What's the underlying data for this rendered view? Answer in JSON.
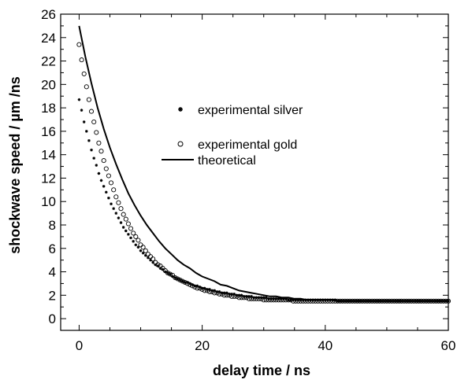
{
  "chart_data": {
    "type": "scatter",
    "xlabel": "delay time / ns",
    "ylabel": "shockwave speed / µm /ns",
    "xlim": [
      -3,
      60
    ],
    "ylim": [
      -1,
      26
    ],
    "x_ticks": [
      0,
      20,
      40,
      60
    ],
    "y_ticks": [
      0,
      2,
      4,
      6,
      8,
      10,
      12,
      14,
      16,
      18,
      20,
      22,
      24,
      26
    ],
    "grid": false,
    "legend_position": "center-right",
    "series": [
      {
        "name": "experimental silver",
        "marker": "star",
        "x": [
          0.0,
          0.4,
          0.8,
          1.2,
          1.6,
          2.0,
          2.4,
          2.8,
          3.2,
          3.6,
          4.0,
          4.4,
          4.8,
          5.2,
          5.6,
          6.0,
          6.4,
          6.8,
          7.2,
          7.6,
          8.0,
          8.4,
          8.8,
          9.2,
          9.6,
          10.0,
          10.4,
          10.8,
          11.2,
          11.6,
          12.0,
          12.4,
          12.8,
          13.2,
          13.6,
          14.0,
          14.4,
          14.8,
          15.2,
          15.6,
          16.0,
          16.4,
          16.8,
          17.2,
          17.6,
          18.0,
          18.4,
          18.8,
          19.2,
          19.6,
          20.0,
          20.4,
          20.8,
          21.2,
          21.6,
          22.0,
          22.4,
          22.8,
          23.2,
          23.6,
          24.0,
          24.4,
          24.8,
          25.2,
          25.6,
          26.0,
          26.4,
          26.8,
          27.2,
          27.6,
          28.0,
          28.4,
          28.8,
          29.2,
          29.6,
          30.0,
          30.4,
          30.8,
          31.2,
          31.6,
          32.0,
          32.4,
          32.8,
          33.2,
          33.6,
          34.0,
          34.4,
          34.8,
          35.2,
          35.6,
          36.0,
          36.4,
          36.8,
          37.2,
          37.6,
          38.0,
          38.4,
          38.8,
          39.2,
          39.6,
          40.0,
          40.4,
          40.8,
          41.2,
          41.6,
          42.0,
          42.4,
          42.8,
          43.2,
          43.6,
          44.0,
          44.4,
          44.8,
          45.2,
          45.6,
          46.0,
          46.4,
          46.8,
          47.2,
          47.6,
          48.0,
          48.4,
          48.8,
          49.2,
          49.6,
          50.0,
          50.4,
          50.8,
          51.2,
          51.6,
          52.0,
          52.4,
          52.8,
          53.2,
          53.6,
          54.0,
          54.4,
          54.8,
          55.2,
          55.6,
          56.0,
          56.4,
          56.8,
          57.2,
          57.6,
          58.0,
          58.4,
          58.8,
          59.2,
          59.6,
          60.0
        ],
        "y": [
          18.7,
          17.8,
          16.8,
          16.0,
          15.2,
          14.4,
          13.7,
          13.1,
          12.4,
          11.8,
          11.3,
          10.8,
          10.3,
          9.8,
          9.4,
          9.0,
          8.6,
          8.2,
          7.8,
          7.5,
          7.2,
          6.9,
          6.6,
          6.3,
          6.1,
          5.8,
          5.6,
          5.4,
          5.2,
          5.0,
          4.8,
          4.6,
          4.5,
          4.3,
          4.2,
          4.0,
          3.9,
          3.8,
          3.6,
          3.5,
          3.4,
          3.3,
          3.2,
          3.1,
          3.1,
          3.0,
          2.9,
          2.8,
          2.8,
          2.7,
          2.6,
          2.6,
          2.5,
          2.5,
          2.4,
          2.4,
          2.3,
          2.3,
          2.2,
          2.2,
          2.2,
          2.1,
          2.1,
          2.1,
          2.0,
          2.0,
          2.0,
          1.9,
          1.9,
          1.9,
          1.9,
          1.8,
          1.8,
          1.8,
          1.8,
          1.8,
          1.8,
          1.7,
          1.7,
          1.7,
          1.7,
          1.7,
          1.7,
          1.7,
          1.7,
          1.6,
          1.6,
          1.6,
          1.6,
          1.6,
          1.6,
          1.6,
          1.6,
          1.6,
          1.6,
          1.6,
          1.6,
          1.6,
          1.6,
          1.6,
          1.6,
          1.6,
          1.6,
          1.6,
          1.6,
          1.5,
          1.5,
          1.5,
          1.5,
          1.5,
          1.5,
          1.5,
          1.5,
          1.5,
          1.5,
          1.5,
          1.5,
          1.5,
          1.5,
          1.5,
          1.5,
          1.5,
          1.5,
          1.5,
          1.5,
          1.5,
          1.5,
          1.5,
          1.5,
          1.5,
          1.5,
          1.5,
          1.5,
          1.5,
          1.5,
          1.5,
          1.5,
          1.5,
          1.5,
          1.5,
          1.5,
          1.5,
          1.5,
          1.5,
          1.5,
          1.5,
          1.5,
          1.5,
          1.5,
          1.5,
          1.5
        ]
      },
      {
        "name": "experimental gold",
        "marker": "open-circle",
        "x": [
          0.0,
          0.4,
          0.8,
          1.2,
          1.6,
          2.0,
          2.4,
          2.8,
          3.2,
          3.6,
          4.0,
          4.4,
          4.8,
          5.2,
          5.6,
          6.0,
          6.4,
          6.8,
          7.2,
          7.6,
          8.0,
          8.4,
          8.8,
          9.2,
          9.6,
          10.0,
          10.4,
          10.8,
          11.2,
          11.6,
          12.0,
          12.4,
          12.8,
          13.2,
          13.6,
          14.0,
          14.4,
          14.8,
          15.2,
          15.6,
          16.0,
          16.4,
          16.8,
          17.2,
          17.6,
          18.0,
          18.4,
          18.8,
          19.2,
          19.6,
          20.0,
          20.4,
          20.8,
          21.2,
          21.6,
          22.0,
          22.4,
          22.8,
          23.2,
          23.6,
          24.0,
          24.4,
          24.8,
          25.2,
          25.6,
          26.0,
          26.4,
          26.8,
          27.2,
          27.6,
          28.0,
          28.4,
          28.8,
          29.2,
          29.6,
          30.0,
          30.4,
          30.8,
          31.2,
          31.6,
          32.0,
          32.4,
          32.8,
          33.2,
          33.6,
          34.0,
          34.4,
          34.8,
          35.2,
          35.6,
          36.0,
          36.4,
          36.8,
          37.2,
          37.6,
          38.0,
          38.4,
          38.8,
          39.2,
          39.6,
          40.0,
          40.4,
          40.8,
          41.2,
          41.6,
          42.0,
          42.4,
          42.8,
          43.2,
          43.6,
          44.0,
          44.4,
          44.8,
          45.2,
          45.6,
          46.0,
          46.4,
          46.8,
          47.2,
          47.6,
          48.0,
          48.4,
          48.8,
          49.2,
          49.6,
          50.0,
          50.4,
          50.8,
          51.2,
          51.6,
          52.0,
          52.4,
          52.8,
          53.2,
          53.6,
          54.0,
          54.4,
          54.8,
          55.2,
          55.6,
          56.0,
          56.4,
          56.8,
          57.2,
          57.6,
          58.0,
          58.4,
          58.8,
          59.2,
          59.6,
          60.0
        ],
        "y": [
          23.4,
          22.1,
          20.9,
          19.8,
          18.7,
          17.7,
          16.8,
          15.9,
          15.0,
          14.3,
          13.5,
          12.8,
          12.2,
          11.6,
          11.0,
          10.4,
          9.9,
          9.4,
          8.9,
          8.5,
          8.1,
          7.7,
          7.3,
          7.0,
          6.7,
          6.3,
          6.1,
          5.8,
          5.5,
          5.3,
          5.1,
          4.8,
          4.6,
          4.5,
          4.3,
          4.1,
          3.9,
          3.8,
          3.7,
          3.5,
          3.4,
          3.3,
          3.2,
          3.1,
          3.0,
          2.9,
          2.8,
          2.7,
          2.6,
          2.6,
          2.5,
          2.4,
          2.4,
          2.3,
          2.3,
          2.2,
          2.2,
          2.1,
          2.1,
          2.0,
          2.0,
          2.0,
          1.9,
          1.9,
          1.9,
          1.8,
          1.8,
          1.8,
          1.8,
          1.7,
          1.7,
          1.7,
          1.7,
          1.7,
          1.7,
          1.6,
          1.6,
          1.6,
          1.6,
          1.6,
          1.6,
          1.6,
          1.6,
          1.6,
          1.6,
          1.6,
          1.6,
          1.5,
          1.5,
          1.5,
          1.5,
          1.5,
          1.5,
          1.5,
          1.5,
          1.5,
          1.5,
          1.5,
          1.5,
          1.5,
          1.5,
          1.5,
          1.5,
          1.5,
          1.5,
          1.5,
          1.5,
          1.5,
          1.5,
          1.5,
          1.5,
          1.5,
          1.5,
          1.5,
          1.5,
          1.5,
          1.5,
          1.5,
          1.5,
          1.5,
          1.5,
          1.5,
          1.5,
          1.5,
          1.5,
          1.5,
          1.5,
          1.5,
          1.5,
          1.5,
          1.5,
          1.5,
          1.5,
          1.5,
          1.5,
          1.5,
          1.5,
          1.5,
          1.5,
          1.5,
          1.5,
          1.5,
          1.5,
          1.5,
          1.5,
          1.5,
          1.5,
          1.5,
          1.5,
          1.5,
          1.5
        ]
      },
      {
        "name": "theoretical",
        "marker": "line",
        "x": [
          0.0,
          1.0,
          2.0,
          3.0,
          4.0,
          5.0,
          6.0,
          7.0,
          8.0,
          9.0,
          10.0,
          11.0,
          12.0,
          13.0,
          14.0,
          15.0,
          16.0,
          17.0,
          18.0,
          19.0,
          20.0,
          21.0,
          22.0,
          23.0,
          24.0,
          25.0,
          26.0,
          27.0,
          28.0,
          29.0,
          30.0,
          31.0,
          32.0,
          33.0,
          34.0,
          35.0,
          36.0,
          37.0,
          38.0,
          39.0,
          40.0,
          41.0,
          42.0,
          43.0,
          44.0,
          45.0,
          46.0,
          47.0,
          48.0,
          49.0,
          50.0,
          51.0,
          52.0,
          53.0,
          54.0,
          55.0,
          56.0,
          57.0,
          58.0,
          59.0,
          60.0
        ],
        "y": [
          25.0,
          22.4,
          20.1,
          18.0,
          16.2,
          14.6,
          13.2,
          11.9,
          10.7,
          9.7,
          8.8,
          8.0,
          7.3,
          6.6,
          6.0,
          5.5,
          5.0,
          4.6,
          4.3,
          3.9,
          3.6,
          3.4,
          3.2,
          2.9,
          2.8,
          2.6,
          2.4,
          2.3,
          2.2,
          2.1,
          2.0,
          1.9,
          1.9,
          1.8,
          1.8,
          1.7,
          1.7,
          1.6,
          1.6,
          1.6,
          1.6,
          1.6,
          1.5,
          1.5,
          1.5,
          1.5,
          1.5,
          1.5,
          1.5,
          1.5,
          1.5,
          1.5,
          1.5,
          1.5,
          1.5,
          1.5,
          1.5,
          1.5,
          1.5,
          1.5,
          1.5
        ]
      }
    ]
  }
}
